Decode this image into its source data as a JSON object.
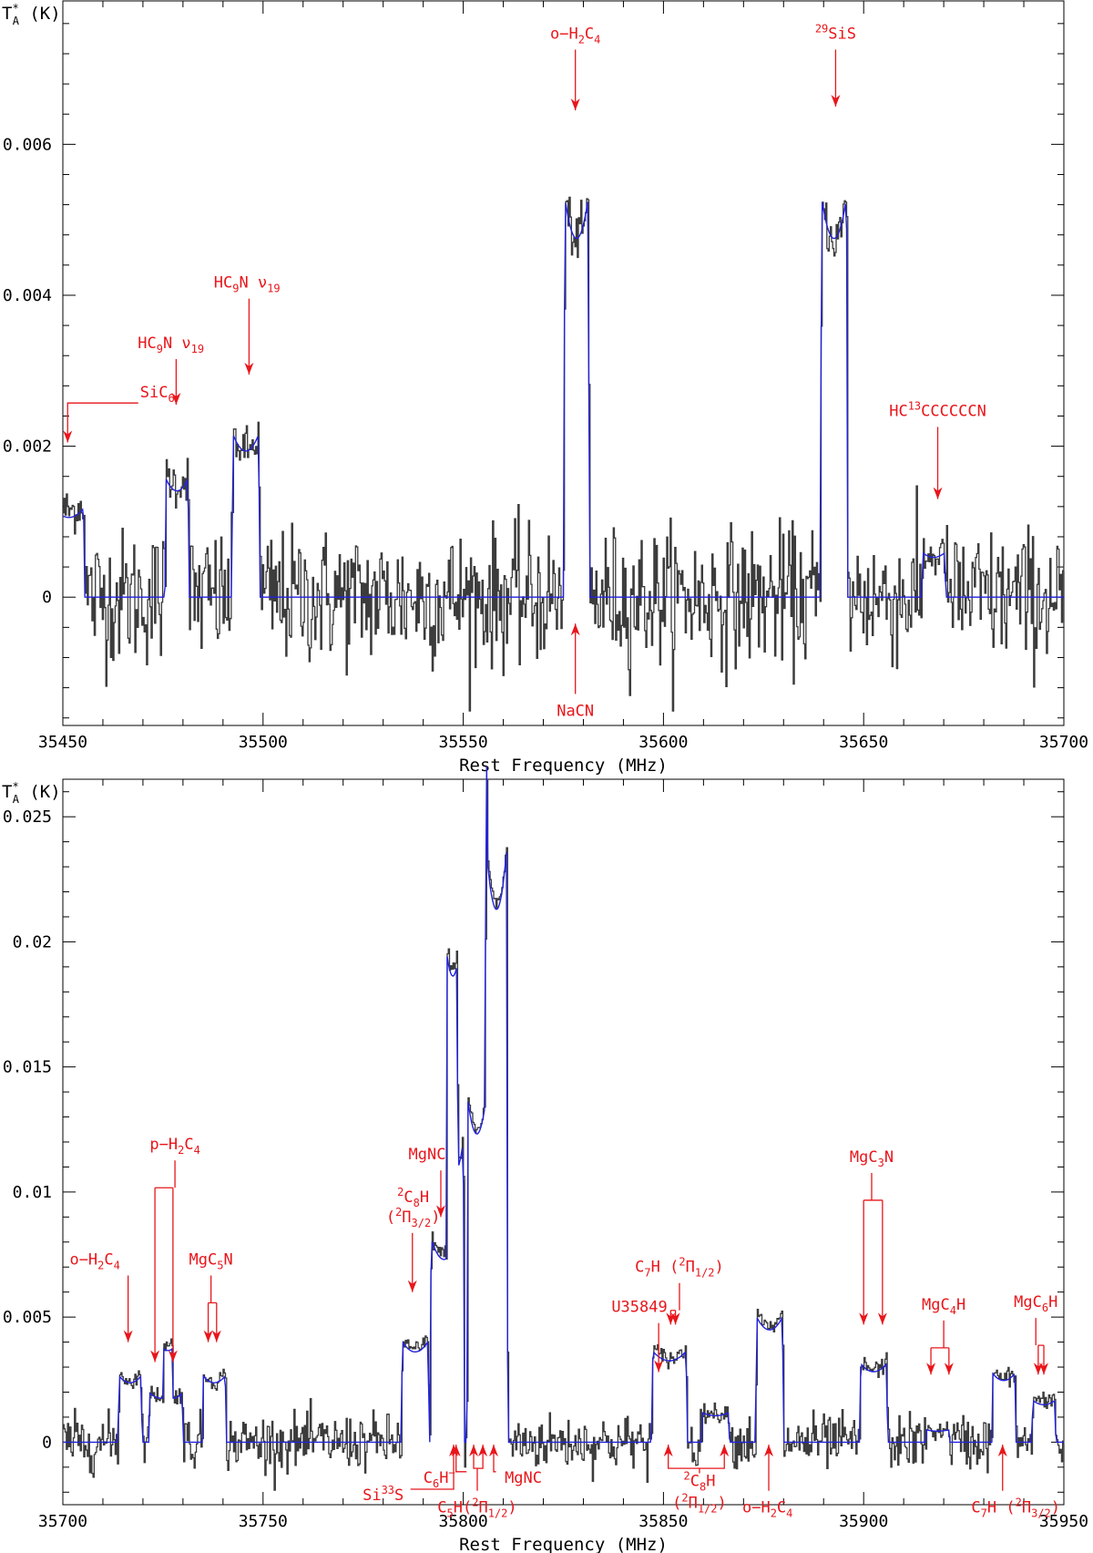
{
  "chart_data": [
    {
      "type": "line",
      "xlabel": "Rest Frequency (MHz)",
      "ylabel": "T*A (K)",
      "xlim": [
        35450,
        35700
      ],
      "ylim": [
        -0.0017,
        0.0079
      ],
      "x_ticks": [
        35450,
        35500,
        35550,
        35600,
        35650,
        35700
      ],
      "y_ticks": [
        0,
        0.002,
        0.004,
        0.006
      ],
      "y_tick_labels": [
        "0",
        "0.002",
        "0.004",
        "0.006"
      ],
      "series": [
        {
          "role": "observed spectrum",
          "color": "#3c3c3c",
          "noise_rms": 0.00045,
          "features": [
            {
              "center": 35451.5,
              "width": 4,
              "peak": 0.0013
            },
            {
              "center": 35478.5,
              "width": 3,
              "peak": 0.0017
            },
            {
              "center": 35495.7,
              "width": 3.5,
              "peak": 0.0022
            },
            {
              "center": 35578.3,
              "width": 3.2,
              "peak": 0.0054
            },
            {
              "center": 35642.6,
              "width": 3.4,
              "peak": 0.0054
            },
            {
              "center": 35667.5,
              "width": 3,
              "peak": 0.0006
            }
          ]
        },
        {
          "role": "model",
          "color": "#2222dd",
          "features": [
            {
              "center": 35451.5,
              "width": 4,
              "peak": 0.0012
            },
            {
              "center": 35478.5,
              "width": 3,
              "peak": 0.0016
            },
            {
              "center": 35495.7,
              "width": 3.5,
              "peak": 0.0022
            },
            {
              "center": 35578.3,
              "width": 3.2,
              "peak": 0.0054
            },
            {
              "center": 35642.6,
              "width": 3.4,
              "peak": 0.0054
            },
            {
              "center": 35667.5,
              "width": 3,
              "peak": 0.0006
            }
          ]
        }
      ],
      "annotations": [
        {
          "label": "SiC6",
          "parts": [
            [
              "SiC",
              ""
            ],
            [
              "6",
              "sub"
            ]
          ],
          "arrow_x": 35451.2,
          "arrow_tip_y": 0.00205,
          "text_x": 35462,
          "text_y": 0.0025,
          "bend": true,
          "anchor": "middle"
        },
        {
          "label": "HC9N ν19",
          "parts": [
            [
              "HC",
              ""
            ],
            [
              "9",
              "sub"
            ],
            [
              "N  ν",
              ""
            ],
            [
              "19",
              "sub"
            ]
          ],
          "arrow_x": 35478.3,
          "arrow_tip_y": 0.00255,
          "text_x": 35477,
          "text_y": 0.0033,
          "anchor": "middle"
        },
        {
          "label": "HC9N ν19",
          "parts": [
            [
              "HC",
              ""
            ],
            [
              "9",
              "sub"
            ],
            [
              "N  ν",
              ""
            ],
            [
              "19",
              "sub"
            ]
          ],
          "arrow_x": 35496.5,
          "arrow_tip_y": 0.00295,
          "text_x": 35496,
          "text_y": 0.0041,
          "anchor": "middle"
        },
        {
          "label": "o-H2C4",
          "parts": [
            [
              "o−H",
              ""
            ],
            [
              "2",
              "sub"
            ],
            [
              "C",
              ""
            ],
            [
              "4",
              "sub"
            ]
          ],
          "arrow_x": 35578,
          "arrow_tip_y": 0.00645,
          "text_x": 35578,
          "text_y": 0.0074,
          "anchor": "middle"
        },
        {
          "label": "29SiS",
          "parts": [
            [
              "29",
              "sup"
            ],
            [
              "SiS",
              ""
            ]
          ],
          "arrow_x": 35643,
          "arrow_tip_y": 0.0065,
          "text_x": 35643,
          "text_y": 0.0074,
          "anchor": "middle"
        },
        {
          "label": "HC13CCCCCCN",
          "parts": [
            [
              "HC",
              ""
            ],
            [
              "13",
              "sup"
            ],
            [
              "CCCCCCN",
              ""
            ]
          ],
          "arrow_x": 35668.5,
          "arrow_tip_y": 0.0013,
          "text_x": 35668.5,
          "text_y": 0.0024,
          "anchor": "middle"
        },
        {
          "label": "NaCN",
          "parts": [
            [
              "NaCN",
              ""
            ]
          ],
          "arrow_x": 35578,
          "arrow_tip_y": -0.00035,
          "text_x": 35578,
          "text_y": -0.0015,
          "anchor": "middle",
          "from_below": true
        }
      ]
    },
    {
      "type": "line",
      "xlabel": "Rest Frequency (MHz)",
      "ylabel": "T*A (K)",
      "xlim": [
        35700,
        35950
      ],
      "ylim": [
        -0.0025,
        0.0265
      ],
      "x_ticks": [
        35700,
        35750,
        35800,
        35850,
        35900,
        35950
      ],
      "y_ticks": [
        0,
        0.005,
        0.01,
        0.015,
        0.02,
        0.025
      ],
      "y_tick_labels": [
        "0",
        "0.005",
        "0.01",
        "0.015",
        "0.02",
        "0.025"
      ],
      "series": [
        {
          "role": "observed spectrum",
          "color": "#3c3c3c",
          "noise_rms": 0.00055,
          "features": [
            {
              "center": 35716.8,
              "width": 3,
              "peak": 0.0028
            },
            {
              "center": 35724.5,
              "width": 3,
              "peak": 0.0021
            },
            {
              "center": 35727.5,
              "width": 2.5,
              "peak": 0.0021
            },
            {
              "center": 35737.8,
              "width": 3,
              "peak": 0.0028
            },
            {
              "center": 35788,
              "width": 3.5,
              "peak": 0.0042
            },
            {
              "center": 35795.2,
              "width": 3.5,
              "peak": 0.0085
            },
            {
              "center": 35798,
              "width": 2.2,
              "peak": 0.0125
            },
            {
              "center": 35803.4,
              "width": 2.5,
              "peak": 0.0142
            },
            {
              "center": 35808.3,
              "width": 2.8,
              "peak": 0.0245
            },
            {
              "center": 35851.5,
              "width": 4.5,
              "peak": 0.0038
            },
            {
              "center": 35863,
              "width": 3.5,
              "peak": 0.0013
            },
            {
              "center": 35876.5,
              "width": 3.5,
              "peak": 0.0052
            },
            {
              "center": 35902.5,
              "width": 3.5,
              "peak": 0.0033
            },
            {
              "center": 35918.5,
              "width": 3,
              "peak": 0.0005
            },
            {
              "center": 35935,
              "width": 3,
              "peak": 0.0029
            },
            {
              "center": 35945,
              "width": 3,
              "peak": 0.0018
            }
          ]
        },
        {
          "role": "model",
          "color": "#2222dd",
          "features": [
            {
              "center": 35716.8,
              "width": 3,
              "peak": 0.0027
            },
            {
              "center": 35724.5,
              "width": 3,
              "peak": 0.002
            },
            {
              "center": 35727.5,
              "width": 2.5,
              "peak": 0.002
            },
            {
              "center": 35737.8,
              "width": 3,
              "peak": 0.0027
            },
            {
              "center": 35788,
              "width": 3.5,
              "peak": 0.0041
            },
            {
              "center": 35795.2,
              "width": 3.5,
              "peak": 0.0083
            },
            {
              "center": 35798,
              "width": 2.2,
              "peak": 0.0123
            },
            {
              "center": 35803.4,
              "width": 2.5,
              "peak": 0.014
            },
            {
              "center": 35808.3,
              "width": 2.8,
              "peak": 0.0242
            },
            {
              "center": 35851.5,
              "width": 4.5,
              "peak": 0.0037
            },
            {
              "center": 35863,
              "width": 3.5,
              "peak": 0.0012
            },
            {
              "center": 35876.5,
              "width": 3.5,
              "peak": 0.0051
            },
            {
              "center": 35902.5,
              "width": 3.5,
              "peak": 0.0032
            },
            {
              "center": 35918.5,
              "width": 3,
              "peak": 0.0005
            },
            {
              "center": 35935,
              "width": 3,
              "peak": 0.0028
            },
            {
              "center": 35945,
              "width": 3,
              "peak": 0.0017
            }
          ]
        }
      ],
      "annotations": [
        {
          "label": "o-H2C4",
          "parts": [
            [
              "o−H",
              ""
            ],
            [
              "2",
              "sub"
            ],
            [
              "C",
              ""
            ],
            [
              "4",
              "sub"
            ]
          ],
          "arrow_x": 35716.3,
          "arrow_tip_y": 0.004,
          "text_x": 35708,
          "text_y": 0.0071,
          "anchor": "middle",
          "bend_to_text": true
        },
        {
          "label": "p-H2C4",
          "parts": [
            [
              "p−H",
              ""
            ],
            [
              "2",
              "sub"
            ],
            [
              "C",
              ""
            ],
            [
              "4",
              "sub"
            ]
          ],
          "arrow_x": 35725.3,
          "arrow_tip_y": 0.0032,
          "text_x": 35728,
          "text_y": 0.0117,
          "anchor": "middle",
          "bracket": [
            35723,
            35727.5
          ]
        },
        {
          "label": "MgC5N",
          "parts": [
            [
              "MgC",
              ""
            ],
            [
              "5",
              "sub"
            ],
            [
              "N",
              ""
            ]
          ],
          "arrow_x": 35737.5,
          "arrow_tip_y": 0.004,
          "text_x": 35737,
          "text_y": 0.0071,
          "anchor": "middle",
          "bracket": [
            35736.3,
            35738.4
          ]
        },
        {
          "label": "2C8H (2Π3/2)",
          "parts": [
            [
              "2",
              "sup"
            ],
            [
              "C",
              ""
            ],
            [
              "8",
              "sub"
            ],
            [
              "H",
              ""
            ]
          ],
          "parts2": [
            [
              "(",
              ""
            ],
            [
              "2",
              "sup"
            ],
            [
              "Π",
              ""
            ],
            [
              "3/2",
              "sub"
            ],
            [
              ")",
              ""
            ]
          ],
          "arrow_x": 35787.3,
          "arrow_tip_y": 0.006,
          "text_x": 35787.5,
          "text_y": 0.0088,
          "anchor": "middle"
        },
        {
          "label": "MgNC",
          "parts": [
            [
              "MgNC",
              ""
            ]
          ],
          "arrow_x": 35794.4,
          "arrow_tip_y": 0.009,
          "text_x": 35791,
          "text_y": 0.0113,
          "anchor": "middle"
        },
        {
          "label": "C7H (2Π1/2)",
          "parts": [
            [
              "C",
              ""
            ],
            [
              "7",
              "sub"
            ],
            [
              "H  (",
              ""
            ],
            [
              "2",
              "sup"
            ],
            [
              "Π",
              ""
            ],
            [
              "1/2",
              "sub"
            ],
            [
              ")",
              ""
            ]
          ],
          "arrow_x": 35852.3,
          "arrow_tip_y": 0.0047,
          "text_x": 35854,
          "text_y": 0.0068,
          "anchor": "middle",
          "bracket": [
            35851.8,
            35853
          ]
        },
        {
          "label": "U35849",
          "parts": [
            [
              "U35849",
              ""
            ]
          ],
          "arrow_x": 35848.8,
          "arrow_tip_y": 0.0028,
          "text_x": 35844,
          "text_y": 0.0052,
          "anchor": "middle"
        },
        {
          "label": "MgC3N",
          "parts": [
            [
              "MgC",
              ""
            ],
            [
              "3",
              "sub"
            ],
            [
              "N",
              ""
            ]
          ],
          "arrow_x": 35902.3,
          "arrow_tip_y": 0.0047,
          "text_x": 35902,
          "text_y": 0.0112,
          "anchor": "middle",
          "bracket": [
            35900,
            35904.7
          ]
        },
        {
          "label": "MgC4H",
          "parts": [
            [
              "MgC",
              ""
            ],
            [
              "4",
              "sub"
            ],
            [
              "H",
              ""
            ]
          ],
          "arrow_x": 35919,
          "arrow_tip_y": 0.0027,
          "text_x": 35920,
          "text_y": 0.0053,
          "anchor": "middle",
          "bracket": [
            35916.8,
            35921.3
          ]
        },
        {
          "label": "MgC6H",
          "parts": [
            [
              "MgC",
              ""
            ],
            [
              "6",
              "sub"
            ],
            [
              "H",
              ""
            ]
          ],
          "arrow_x": 35944.3,
          "arrow_tip_y": 0.0027,
          "text_x": 35943,
          "text_y": 0.0054,
          "anchor": "middle",
          "bracket": [
            35943.6,
            35945
          ]
        },
        {
          "label": "Si33S",
          "parts": [
            [
              "Si",
              ""
            ],
            [
              "33",
              "sup"
            ],
            [
              "S",
              ""
            ]
          ],
          "arrow_x": 35797.6,
          "arrow_tip_y": -0.0001,
          "text_x": 35780,
          "text_y": -0.0021,
          "anchor": "middle",
          "from_below": true,
          "elbow": true
        },
        {
          "label": "C6H-",
          "parts": [
            [
              "C",
              ""
            ],
            [
              "6",
              "sub"
            ],
            [
              "H",
              ""
            ],
            [
              "−",
              "sup"
            ]
          ],
          "arrow_x": 35798.2,
          "arrow_tip_y": -0.0001,
          "text_x": 35794,
          "text_y": -0.0014,
          "anchor": "middle",
          "from_below": true,
          "elbow": true
        },
        {
          "label": "C5H(2Π1/2)",
          "parts": [
            [
              "C",
              ""
            ],
            [
              "5",
              "sub"
            ],
            [
              "H(",
              ""
            ],
            [
              "2",
              "sup"
            ],
            [
              "Π",
              ""
            ],
            [
              "1/2",
              "sub"
            ],
            [
              ")",
              ""
            ]
          ],
          "arrow_x": 35803.7,
          "arrow_tip_y": -0.0001,
          "text_x": 35803.5,
          "text_y": -0.0026,
          "anchor": "middle",
          "from_below": true,
          "bracket_below": [
            35802.6,
            35804.9
          ]
        },
        {
          "label": "MgNC",
          "parts": [
            [
              "MgNC",
              ""
            ]
          ],
          "arrow_x": 35807.6,
          "arrow_tip_y": -0.0001,
          "text_x": 35815,
          "text_y": -0.0014,
          "anchor": "middle",
          "from_below": true,
          "elbow": true
        },
        {
          "label": "2C8H (2Π1/2)",
          "parts": [
            [
              "2",
              "sup"
            ],
            [
              "C",
              ""
            ],
            [
              "8",
              "sub"
            ],
            [
              "H",
              ""
            ]
          ],
          "parts2": [
            [
              "(",
              ""
            ],
            [
              "2",
              "sup"
            ],
            [
              "Π",
              ""
            ],
            [
              "1/2",
              "sub"
            ],
            [
              ")",
              ""
            ]
          ],
          "arrow_x": 35858,
          "arrow_tip_y": -0.0001,
          "text_x": 35859,
          "text_y": -0.0019,
          "anchor": "middle",
          "from_below": true,
          "bracket_below": [
            35851.2,
            35865.2
          ]
        },
        {
          "label": "o-H2C4",
          "parts": [
            [
              "o−H",
              ""
            ],
            [
              "2",
              "sub"
            ],
            [
              "C",
              ""
            ],
            [
              "4",
              "sub"
            ]
          ],
          "arrow_x": 35876.3,
          "arrow_tip_y": -0.0001,
          "text_x": 35876,
          "text_y": -0.0026,
          "anchor": "middle",
          "from_below": true
        },
        {
          "label": "C7H (2Π3/2)",
          "parts": [
            [
              "C",
              ""
            ],
            [
              "7",
              "sub"
            ],
            [
              "H  (",
              ""
            ],
            [
              "2",
              "sup"
            ],
            [
              "Π",
              ""
            ],
            [
              "3/2",
              "sub"
            ],
            [
              ")",
              ""
            ]
          ],
          "arrow_x": 35934.7,
          "arrow_tip_y": -0.0001,
          "text_x": 35938,
          "text_y": -0.0026,
          "anchor": "middle",
          "from_below": true
        }
      ]
    }
  ],
  "colors": {
    "observed": "#3c3c3c",
    "model": "#2222dd",
    "annotation": "#e8161b"
  }
}
